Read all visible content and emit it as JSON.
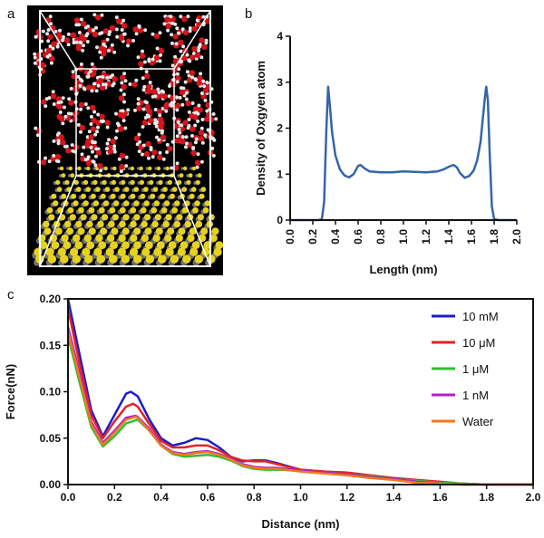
{
  "panels": {
    "a": "a",
    "b": "b",
    "c": "c"
  },
  "snapshot": {
    "description": "Molecular dynamics snapshot: water molecules (red oxygen, white hydrogen) above a layered MoS2-like substrate (yellow and grey atoms) inside a simulation box",
    "colors": {
      "background": "#000000",
      "oxygen": "#d4141c",
      "hydrogen": "#e8e8e8",
      "sulfur": "#e6d21e",
      "metal": "#6e6e78",
      "box": "#ffffff"
    }
  },
  "chart_data": [
    {
      "id": "b",
      "type": "line",
      "title": "",
      "xlabel": "Length (nm)",
      "ylabel": "Density of Oxgyen atom",
      "xlim": [
        0.0,
        2.0
      ],
      "ylim": [
        0,
        4
      ],
      "xticks": [
        "0.0",
        "0.2",
        "0.4",
        "0.6",
        "0.8",
        "1.0",
        "1.2",
        "1.4",
        "1.6",
        "1.8",
        "2.0"
      ],
      "yticks": [
        "0",
        "1",
        "2",
        "3",
        "4"
      ],
      "grid": false,
      "series": [
        {
          "name": "Density",
          "color": "#3565a8",
          "x": [
            0.0,
            0.25,
            0.28,
            0.3,
            0.32,
            0.335,
            0.35,
            0.37,
            0.4,
            0.44,
            0.48,
            0.52,
            0.56,
            0.6,
            0.62,
            0.66,
            0.7,
            0.75,
            0.8,
            0.9,
            1.0,
            1.1,
            1.2,
            1.3,
            1.35,
            1.4,
            1.44,
            1.47,
            1.5,
            1.54,
            1.58,
            1.62,
            1.65,
            1.68,
            1.7,
            1.72,
            1.73,
            1.745,
            1.76,
            1.78,
            1.8,
            1.84,
            2.0
          ],
          "y": [
            0.0,
            0.0,
            0.02,
            0.4,
            2.0,
            2.9,
            2.5,
            1.9,
            1.4,
            1.1,
            0.97,
            0.93,
            1.0,
            1.18,
            1.2,
            1.12,
            1.06,
            1.05,
            1.04,
            1.04,
            1.06,
            1.05,
            1.04,
            1.06,
            1.1,
            1.16,
            1.2,
            1.15,
            1.02,
            0.92,
            0.96,
            1.08,
            1.3,
            1.7,
            2.2,
            2.7,
            2.9,
            2.6,
            1.5,
            0.3,
            0.02,
            0.0,
            0.0
          ]
        }
      ]
    },
    {
      "id": "c",
      "type": "line",
      "title": "",
      "xlabel": "Distance (nm)",
      "ylabel": "Force(nN)",
      "xlim": [
        0.0,
        2.0
      ],
      "ylim": [
        0.0,
        0.2
      ],
      "xticks": [
        "0.0",
        "0.2",
        "0.4",
        "0.6",
        "0.8",
        "1.0",
        "1.2",
        "1.4",
        "1.6",
        "1.8",
        "2.0"
      ],
      "yticks": [
        "0.00",
        "0.05",
        "0.10",
        "0.15",
        "0.20"
      ],
      "grid": false,
      "legend_position": "top-right",
      "series": [
        {
          "name": "10 mM",
          "color": "#1c1ccc",
          "x": [
            0.0,
            0.05,
            0.1,
            0.15,
            0.2,
            0.25,
            0.27,
            0.3,
            0.35,
            0.4,
            0.45,
            0.5,
            0.55,
            0.6,
            0.65,
            0.7,
            0.75,
            0.8,
            0.85,
            0.9,
            1.0,
            1.1,
            1.2,
            1.3,
            1.4,
            1.5,
            1.6,
            1.7,
            1.8,
            2.0
          ],
          "y": [
            0.2,
            0.14,
            0.08,
            0.052,
            0.075,
            0.098,
            0.1,
            0.095,
            0.07,
            0.05,
            0.042,
            0.045,
            0.05,
            0.048,
            0.04,
            0.03,
            0.025,
            0.026,
            0.026,
            0.023,
            0.016,
            0.014,
            0.012,
            0.009,
            0.006,
            0.004,
            0.002,
            0.001,
            0.0,
            0.0
          ]
        },
        {
          "name": "10 μM",
          "color": "#e02424",
          "x": [
            0.0,
            0.05,
            0.1,
            0.15,
            0.2,
            0.25,
            0.28,
            0.3,
            0.35,
            0.4,
            0.45,
            0.5,
            0.55,
            0.6,
            0.65,
            0.7,
            0.75,
            0.8,
            0.85,
            0.9,
            1.0,
            1.1,
            1.2,
            1.3,
            1.4,
            1.5,
            1.6,
            1.7,
            1.8,
            2.0
          ],
          "y": [
            0.19,
            0.13,
            0.075,
            0.05,
            0.068,
            0.084,
            0.087,
            0.084,
            0.065,
            0.047,
            0.04,
            0.04,
            0.042,
            0.042,
            0.037,
            0.03,
            0.026,
            0.025,
            0.025,
            0.022,
            0.016,
            0.014,
            0.013,
            0.01,
            0.007,
            0.005,
            0.003,
            0.001,
            0.0,
            0.0
          ]
        },
        {
          "name": "1 μM",
          "color": "#2fbf2f",
          "x": [
            0.0,
            0.05,
            0.1,
            0.15,
            0.2,
            0.25,
            0.3,
            0.35,
            0.4,
            0.45,
            0.5,
            0.55,
            0.6,
            0.65,
            0.7,
            0.75,
            0.8,
            0.85,
            0.9,
            1.0,
            1.1,
            1.2,
            1.3,
            1.4,
            1.5,
            1.6,
            1.7,
            1.8,
            2.0
          ],
          "y": [
            0.16,
            0.11,
            0.062,
            0.041,
            0.052,
            0.066,
            0.07,
            0.058,
            0.042,
            0.033,
            0.03,
            0.031,
            0.032,
            0.03,
            0.026,
            0.02,
            0.017,
            0.016,
            0.016,
            0.015,
            0.013,
            0.011,
            0.009,
            0.006,
            0.004,
            0.002,
            0.001,
            0.0,
            0.0
          ]
        },
        {
          "name": "1 nM",
          "color": "#b020c8",
          "x": [
            0.0,
            0.05,
            0.1,
            0.15,
            0.2,
            0.25,
            0.29,
            0.3,
            0.35,
            0.4,
            0.45,
            0.5,
            0.55,
            0.6,
            0.65,
            0.7,
            0.75,
            0.8,
            0.85,
            0.9,
            1.0,
            1.1,
            1.2,
            1.3,
            1.4,
            1.5,
            1.6,
            1.7,
            1.8,
            2.0
          ],
          "y": [
            0.17,
            0.12,
            0.068,
            0.045,
            0.058,
            0.072,
            0.074,
            0.073,
            0.06,
            0.043,
            0.035,
            0.033,
            0.035,
            0.036,
            0.033,
            0.028,
            0.022,
            0.019,
            0.018,
            0.018,
            0.015,
            0.013,
            0.011,
            0.008,
            0.006,
            0.003,
            0.001,
            0.0,
            0.0,
            0.0
          ]
        },
        {
          "name": "Water",
          "color": "#f07820",
          "x": [
            0.0,
            0.05,
            0.1,
            0.15,
            0.2,
            0.25,
            0.29,
            0.3,
            0.35,
            0.4,
            0.45,
            0.5,
            0.55,
            0.6,
            0.65,
            0.7,
            0.75,
            0.8,
            0.85,
            0.9,
            1.0,
            1.1,
            1.2,
            1.3,
            1.4,
            1.5,
            1.6,
            1.7,
            1.8,
            2.0
          ],
          "y": [
            0.165,
            0.115,
            0.065,
            0.043,
            0.056,
            0.07,
            0.073,
            0.072,
            0.058,
            0.042,
            0.034,
            0.032,
            0.034,
            0.035,
            0.032,
            0.027,
            0.021,
            0.018,
            0.017,
            0.017,
            0.014,
            0.012,
            0.01,
            0.007,
            0.005,
            0.002,
            0.001,
            0.0,
            0.0,
            0.0
          ]
        }
      ]
    }
  ]
}
